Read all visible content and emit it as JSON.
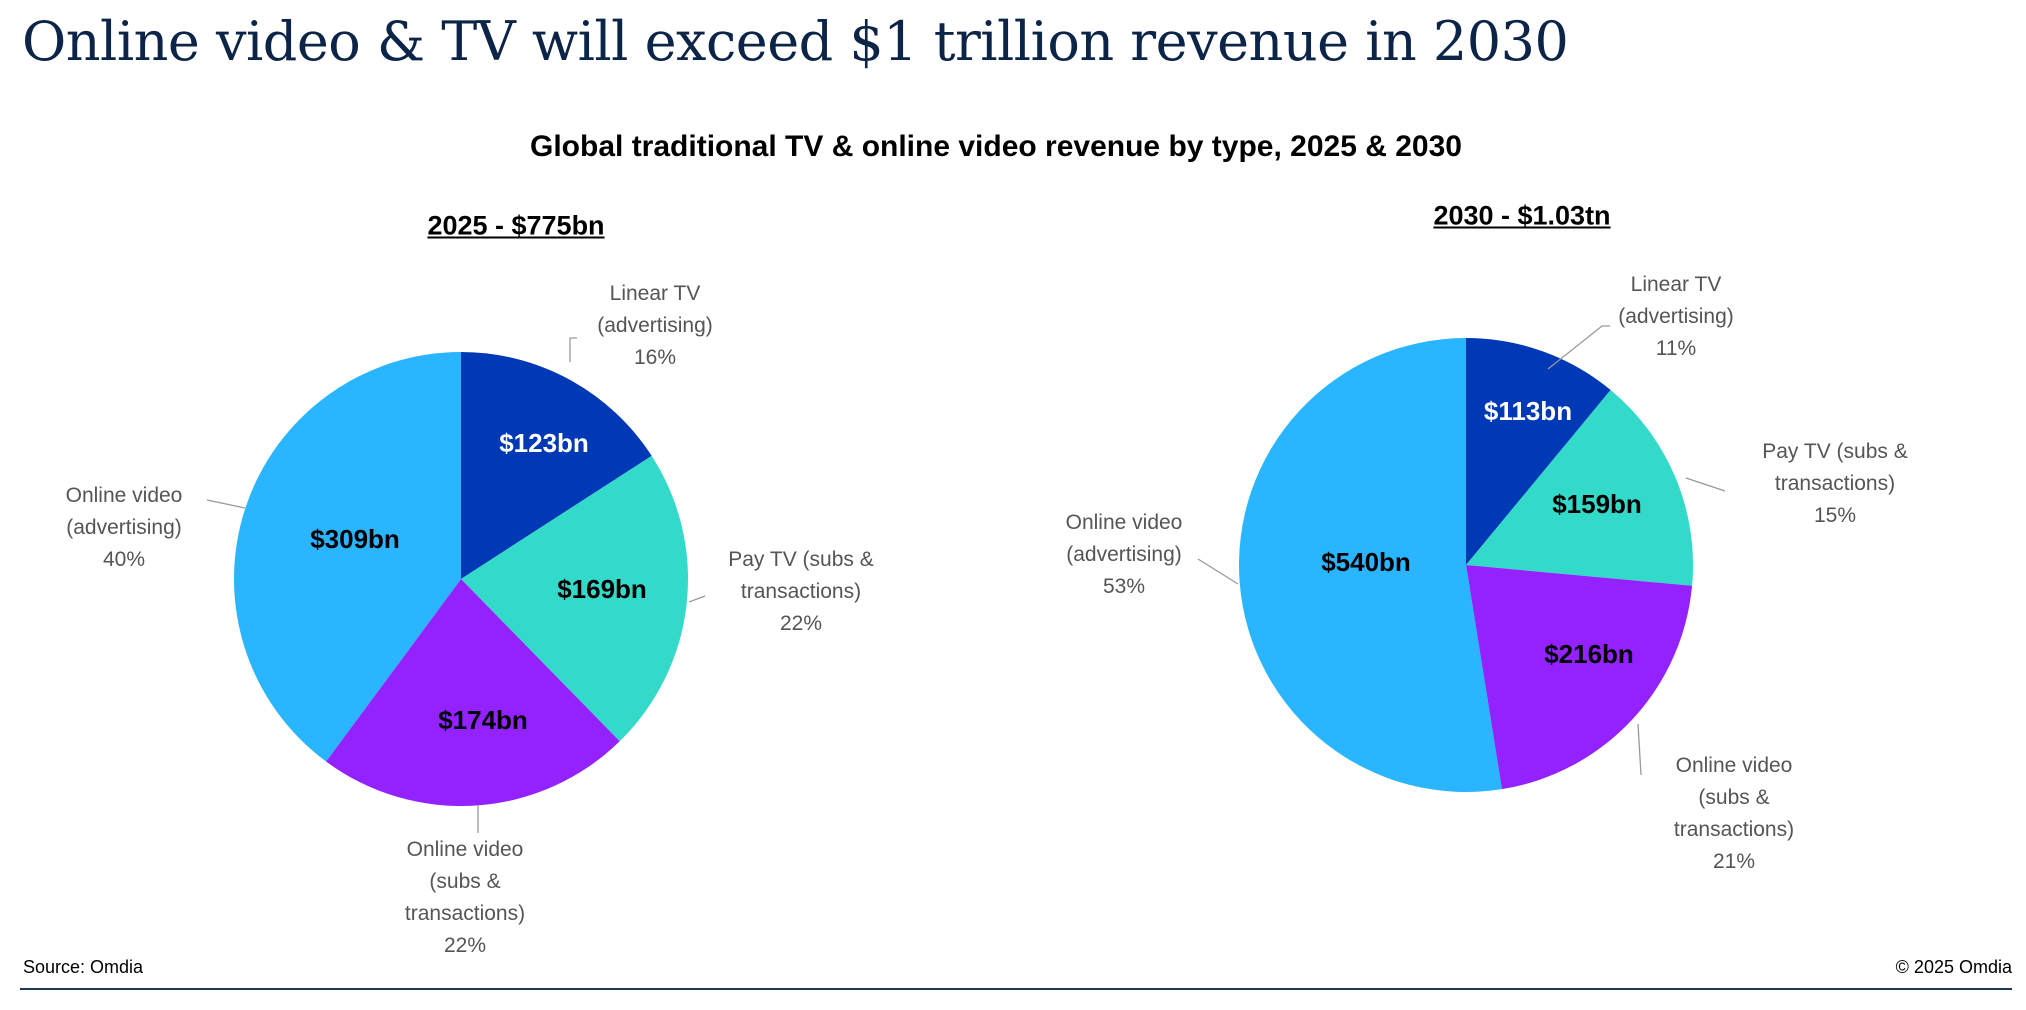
{
  "title": "Online video & TV will exceed $1 trillion revenue in 2030",
  "footer": {
    "source": "Source: Omdia",
    "copyright": "© 2025 Omdia"
  },
  "chart_data": {
    "type": "pie",
    "title": "Global traditional TV & online video revenue by type, 2025 & 2030",
    "colors": {
      "Linear TV (advertising)": "#0039b5",
      "Pay TV (subs & transactions)": "#33d9c9",
      "Online video (subs & transactions)": "#9322ff",
      "Online video (advertising)": "#29b5ff"
    },
    "charts": [
      {
        "title": "2025 - $775bn",
        "slices": [
          {
            "name": [
              "Linear TV",
              "(advertising)"
            ],
            "value": 123,
            "value_label": "$123bn",
            "percent": "16%"
          },
          {
            "name": [
              "Pay TV (subs &",
              "transactions)"
            ],
            "value": 169,
            "value_label": "$169bn",
            "percent": "22%"
          },
          {
            "name": [
              "Online video",
              "(subs &",
              "transactions)"
            ],
            "value": 174,
            "value_label": "$174bn",
            "percent": "22%"
          },
          {
            "name": [
              "Online video",
              "(advertising)"
            ],
            "value": 309,
            "value_label": "$309bn",
            "percent": "40%"
          }
        ]
      },
      {
        "title": "2030 - $1.03tn",
        "slices": [
          {
            "name": [
              "Linear TV",
              "(advertising)"
            ],
            "value": 113,
            "value_label": "$113bn",
            "percent": "11%"
          },
          {
            "name": [
              "Pay TV (subs &",
              "transactions)"
            ],
            "value": 159,
            "value_label": "$159bn",
            "percent": "15%"
          },
          {
            "name": [
              "Online video",
              "(subs &",
              "transactions)"
            ],
            "value": 216,
            "value_label": "$216bn",
            "percent": "21%"
          },
          {
            "name": [
              "Online video",
              "(advertising)"
            ],
            "value": 540,
            "value_label": "$540bn",
            "percent": "53%"
          }
        ]
      }
    ]
  }
}
